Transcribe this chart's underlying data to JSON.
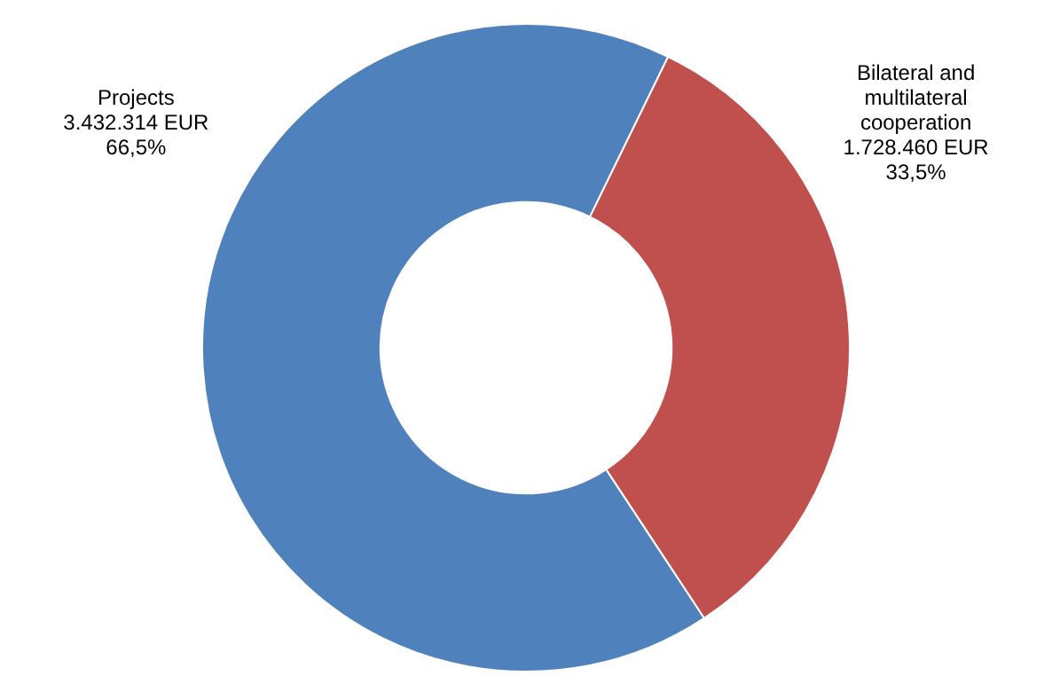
{
  "chart_data": {
    "type": "donut",
    "categories": [
      "Projects",
      "Bilateral and multilateral cooperation"
    ],
    "values": [
      3432314,
      1728460
    ],
    "colors": [
      "#4f81bd",
      "#c0504d"
    ],
    "value_labels": [
      "3.432.314 EUR\n66,5%",
      "1.728.460 EUR\n33,5%"
    ],
    "legend": false
  }
}
